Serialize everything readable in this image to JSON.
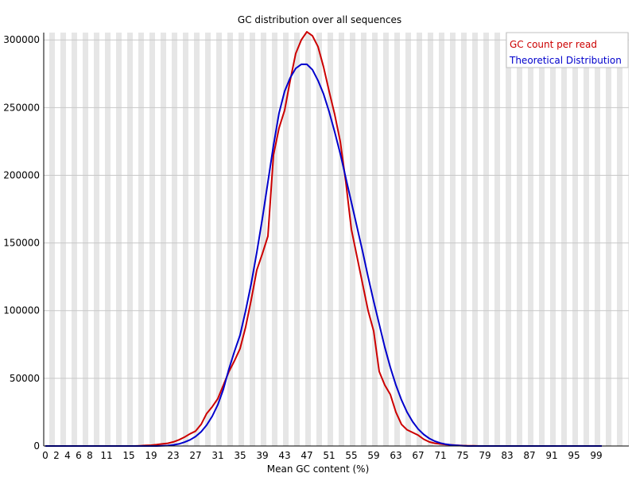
{
  "chart_data": {
    "type": "line",
    "title": "GC distribution over all sequences",
    "xlabel": "Mean GC content (%)",
    "ylabel": "",
    "x": [
      0,
      1,
      2,
      3,
      4,
      5,
      6,
      7,
      8,
      9,
      10,
      11,
      12,
      13,
      14,
      15,
      16,
      17,
      18,
      19,
      20,
      21,
      22,
      23,
      24,
      25,
      26,
      27,
      28,
      29,
      30,
      31,
      32,
      33,
      34,
      35,
      36,
      37,
      38,
      39,
      40,
      41,
      42,
      43,
      44,
      45,
      46,
      47,
      48,
      49,
      50,
      51,
      52,
      53,
      54,
      55,
      56,
      57,
      58,
      59,
      60,
      61,
      62,
      63,
      64,
      65,
      66,
      67,
      68,
      69,
      70,
      71,
      72,
      73,
      74,
      75,
      76,
      77,
      78,
      79,
      80,
      81,
      82,
      83,
      84,
      85,
      86,
      87,
      88,
      89,
      90,
      91,
      92,
      93,
      94,
      95,
      96,
      97,
      98,
      99,
      100
    ],
    "x_tick_labels": [
      "0",
      "2",
      "4",
      "6",
      "8",
      "11",
      "15",
      "19",
      "23",
      "27",
      "31",
      "35",
      "39",
      "43",
      "47",
      "51",
      "55",
      "59",
      "63",
      "67",
      "71",
      "75",
      "79",
      "83",
      "87",
      "91",
      "95",
      "99"
    ],
    "x_tick_values": [
      0,
      2,
      4,
      6,
      8,
      11,
      15,
      19,
      23,
      27,
      31,
      35,
      39,
      43,
      47,
      51,
      55,
      59,
      63,
      67,
      71,
      75,
      79,
      83,
      87,
      91,
      95,
      99
    ],
    "y_ticks": [
      0,
      50000,
      100000,
      150000,
      200000,
      250000,
      300000
    ],
    "y_tick_labels": [
      "0",
      "50000",
      "100000",
      "150000",
      "200000",
      "250000",
      "300000"
    ],
    "ylim": [
      0,
      306000
    ],
    "xlim": [
      0,
      100
    ],
    "grid": "alternating vertical bands, horizontal lines",
    "legend_placement": "top-right",
    "series": [
      {
        "name": "GC count per read",
        "color": "#cc0000",
        "values": [
          0,
          0,
          0,
          0,
          0,
          0,
          0,
          0,
          0,
          0,
          0,
          0,
          0,
          0,
          0,
          0,
          0,
          200,
          400,
          600,
          1000,
          1500,
          2000,
          3000,
          4500,
          6500,
          9000,
          11000,
          16000,
          24000,
          29000,
          35000,
          45000,
          55000,
          63000,
          72000,
          88000,
          108000,
          130000,
          142000,
          155000,
          215000,
          235000,
          248000,
          270000,
          290000,
          300000,
          306000,
          303000,
          295000,
          280000,
          262000,
          245000,
          225000,
          195000,
          160000,
          140000,
          120000,
          100000,
          85000,
          55000,
          45000,
          38000,
          25000,
          16000,
          12000,
          10000,
          8000,
          5000,
          3000,
          2000,
          1500,
          1000,
          800,
          500,
          300,
          200,
          100,
          0,
          0,
          0,
          0,
          0,
          0,
          0,
          0,
          0,
          0,
          0,
          0,
          0,
          0,
          0,
          0,
          0,
          0,
          0,
          0,
          0,
          0,
          0
        ]
      },
      {
        "name": "Theoretical Distribution",
        "color": "#0000cc",
        "values": [
          0,
          0,
          0,
          0,
          0,
          0,
          0,
          0,
          0,
          0,
          0,
          0,
          0,
          0,
          0,
          0,
          0,
          0,
          0,
          0,
          0,
          100,
          300,
          800,
          1500,
          2800,
          4500,
          7000,
          10500,
          15500,
          22000,
          30500,
          42000,
          57000,
          70000,
          82000,
          100000,
          120000,
          143000,
          168000,
          195000,
          222000,
          246000,
          262000,
          272000,
          279000,
          282000,
          282000,
          278000,
          270000,
          260000,
          247000,
          232000,
          216000,
          198000,
          180000,
          162000,
          144000,
          125000,
          107000,
          90000,
          73000,
          58000,
          45000,
          34000,
          25000,
          18000,
          12500,
          8500,
          5600,
          3500,
          2200,
          1300,
          700,
          400,
          200,
          0,
          0,
          0,
          0,
          0,
          0,
          0,
          0,
          0,
          0,
          0,
          0,
          0,
          0,
          0,
          0,
          0,
          0,
          0,
          0,
          0,
          0,
          0,
          0,
          0
        ]
      }
    ]
  },
  "colors": {
    "band": "#e6e6e6",
    "gridline": "#c8c8c8",
    "axis": "#000000"
  }
}
